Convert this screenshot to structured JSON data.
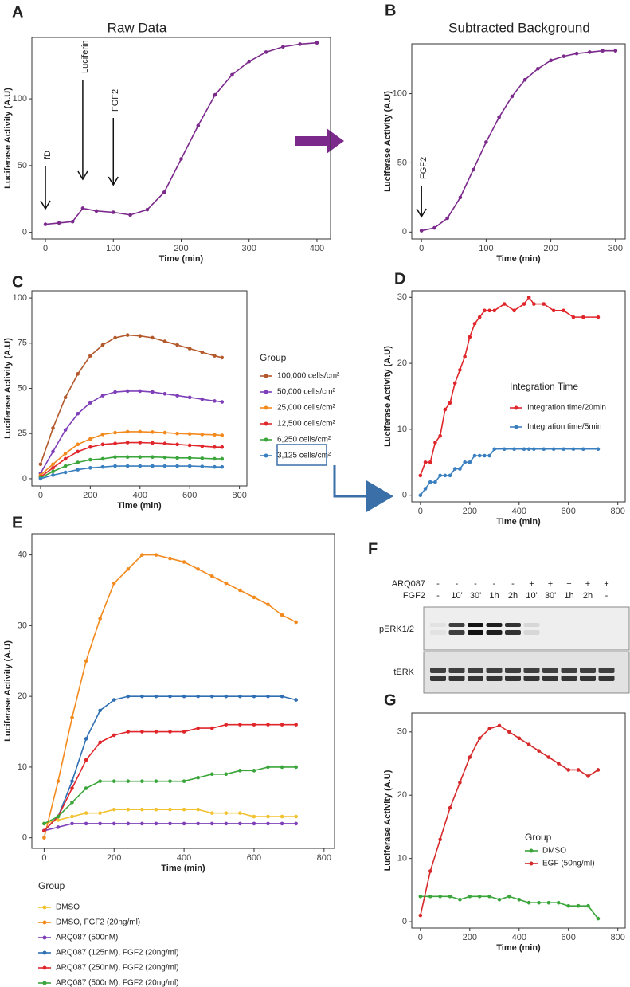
{
  "chart_data": [
    {
      "type": "line",
      "panel": "A",
      "title": "Raw Data",
      "x_label": "Time (min)",
      "y_label": "Luciferase Activity (A.U)",
      "annotations": [
        "fD",
        "Luciferin",
        "FGF2"
      ],
      "x": [
        0,
        20,
        40,
        55,
        75,
        100,
        125,
        150,
        175,
        200,
        225,
        250,
        275,
        300,
        325,
        350,
        375,
        400
      ],
      "xlim": [
        -20,
        420
      ],
      "xticks": [
        0,
        100,
        200,
        300,
        400
      ],
      "ylim": [
        -5,
        146
      ],
      "yticks": [
        0,
        50,
        100
      ],
      "series": [
        {
          "name": null,
          "color": "#7b2a8c",
          "values": [
            6,
            7,
            8,
            18,
            16,
            15,
            13,
            17,
            30,
            55,
            80,
            103,
            118,
            128,
            135,
            139,
            141,
            142
          ]
        }
      ]
    },
    {
      "type": "line",
      "panel": "B",
      "title": "Subtracted Background",
      "x_label": "Time (min)",
      "y_label": "Luciferase Activity (A.U)",
      "annotations": [
        "FGF2"
      ],
      "x": [
        0,
        20,
        40,
        60,
        80,
        100,
        120,
        140,
        160,
        180,
        200,
        220,
        240,
        260,
        280,
        300
      ],
      "xlim": [
        -15,
        315
      ],
      "xticks": [
        0,
        100,
        200,
        300
      ],
      "ylim": [
        -5,
        136
      ],
      "yticks": [
        0,
        50,
        100
      ],
      "series": [
        {
          "name": null,
          "color": "#7b2a8c",
          "values": [
            1,
            3,
            10,
            25,
            45,
            65,
            83,
            98,
            110,
            118,
            124,
            127,
            129,
            130,
            131,
            131
          ]
        }
      ]
    },
    {
      "type": "line",
      "panel": "C",
      "x_label": "Time (min)",
      "y_label": "Luciferase Activity (A.U)",
      "legend_title": "Group",
      "x": [
        0,
        50,
        100,
        150,
        200,
        250,
        300,
        350,
        400,
        450,
        500,
        550,
        600,
        650,
        700,
        730
      ],
      "xlim": [
        -35,
        830
      ],
      "xticks": [
        0,
        200,
        400,
        600,
        800
      ],
      "ylim": [
        -4,
        104
      ],
      "yticks": [
        0,
        25,
        50,
        75,
        100
      ],
      "series": [
        {
          "name": "100,000 cells/cm²",
          "color": "#b3592b",
          "values": [
            8,
            28,
            45,
            58,
            68,
            74,
            78,
            79.5,
            79,
            78,
            76,
            74,
            72,
            70,
            68,
            67
          ]
        },
        {
          "name": "50,000 cells/cm²",
          "color": "#7e3fb9",
          "values": [
            3,
            15,
            27,
            36,
            42,
            46,
            48,
            48.5,
            48.5,
            48,
            47,
            46,
            45,
            44,
            43,
            42.5
          ]
        },
        {
          "name": "25,000 cells/cm²",
          "color": "#f28a1e",
          "values": [
            2,
            8,
            14,
            19,
            22,
            24.5,
            25.5,
            26,
            26,
            25.8,
            25.5,
            25,
            24.8,
            24.5,
            24.3,
            24
          ]
        },
        {
          "name": "12,500 cells/cm²",
          "color": "#e0262b",
          "values": [
            1,
            6,
            11,
            15,
            17.5,
            19,
            19.5,
            20,
            20,
            19.8,
            19.5,
            19,
            18.5,
            18,
            17.5,
            17.5
          ]
        },
        {
          "name": "6,250 cells/cm²",
          "color": "#3aa53a",
          "values": [
            0.5,
            4,
            7,
            9,
            10.5,
            11,
            12,
            12,
            12,
            12,
            11.8,
            11.5,
            11.5,
            11.3,
            11,
            11
          ]
        },
        {
          "name": "3,125 cells/cm²",
          "color": "#3a7fbf",
          "values": [
            0,
            2,
            3.5,
            5,
            6,
            6.5,
            7,
            7,
            7,
            7,
            7,
            7,
            7,
            6.8,
            6.5,
            6.5
          ]
        }
      ]
    },
    {
      "type": "line",
      "panel": "D",
      "x_label": "Time (min)",
      "y_label": "Luciferase Activity (A.U)",
      "legend_title": "Integration Time",
      "x": [
        0,
        20,
        40,
        60,
        80,
        100,
        120,
        140,
        160,
        180,
        200,
        220,
        240,
        260,
        280,
        300,
        340,
        380,
        420,
        440,
        460,
        500,
        540,
        580,
        620,
        660,
        720
      ],
      "xlim": [
        -35,
        830
      ],
      "xticks": [
        0,
        200,
        400,
        600,
        800
      ],
      "ylim": [
        -1,
        31
      ],
      "yticks": [
        0,
        10,
        20,
        30
      ],
      "series": [
        {
          "name": "Integration time/20min",
          "color": "#e0262b",
          "values": [
            3,
            5,
            5,
            8,
            9,
            13,
            14,
            17,
            19,
            21,
            24,
            26,
            27,
            28,
            28,
            28,
            29,
            28,
            29,
            30,
            29,
            29,
            28,
            28,
            27,
            27,
            27
          ]
        },
        {
          "name": "Integration time/5min",
          "color": "#3a7fbf",
          "values": [
            0,
            1,
            2,
            2,
            3,
            3,
            3,
            4,
            4,
            5,
            5,
            6,
            6,
            6,
            6,
            7,
            7,
            7,
            7,
            7,
            7,
            7,
            7,
            7,
            7,
            7,
            7
          ]
        }
      ]
    },
    {
      "type": "line",
      "panel": "E",
      "x_label": "Time (min)",
      "y_label": "Luciferase Activity (A.U)",
      "legend_title": "Group",
      "x": [
        0,
        40,
        80,
        120,
        160,
        200,
        240,
        280,
        320,
        360,
        400,
        440,
        480,
        520,
        560,
        600,
        640,
        680,
        720
      ],
      "xlim": [
        -35,
        830
      ],
      "xticks": [
        0,
        200,
        400,
        600,
        800
      ],
      "ylim": [
        -1.5,
        43
      ],
      "yticks": [
        0,
        10,
        20,
        30,
        40
      ],
      "series": [
        {
          "name": "DMSO",
          "color": "#f2c230",
          "values": [
            2,
            2.5,
            3,
            3.5,
            3.5,
            4,
            4,
            4,
            4,
            4,
            4,
            4,
            3.5,
            3.5,
            3.5,
            3,
            3,
            3,
            3
          ]
        },
        {
          "name": "DMSO, FGF2 (20ng/ml)",
          "color": "#f28a1e",
          "values": [
            0,
            8,
            17,
            25,
            31,
            36,
            38,
            40,
            40,
            39.5,
            39,
            38,
            37,
            36,
            35,
            34,
            33,
            31.5,
            30.5
          ]
        },
        {
          "name": "ARQ087 (500nM)",
          "color": "#7e3fb9",
          "values": [
            1,
            1.5,
            2,
            2,
            2,
            2,
            2,
            2,
            2,
            2,
            2,
            2,
            2,
            2,
            2,
            2,
            2,
            2,
            2
          ]
        },
        {
          "name": "ARQ087 (125nM), FGF2 (20ng/ml)",
          "color": "#2f6fb3",
          "values": [
            1,
            3,
            8,
            14,
            18,
            19.5,
            20,
            20,
            20,
            20,
            20,
            20,
            20,
            20,
            20,
            20,
            20,
            20,
            19.5
          ]
        },
        {
          "name": "ARQ087 (250nM), FGF2 (20ng/ml)",
          "color": "#e0262b",
          "values": [
            1,
            3,
            7,
            11,
            13.5,
            14.5,
            15,
            15,
            15,
            15,
            15,
            15.5,
            15.5,
            16,
            16,
            16,
            16,
            16,
            16
          ]
        },
        {
          "name": "ARQ087 (500nM), FGF2 (20ng/ml)",
          "color": "#3aa53a",
          "values": [
            2,
            3,
            5,
            7,
            8,
            8,
            8,
            8,
            8,
            8,
            8,
            8.5,
            9,
            9,
            9.5,
            9.5,
            10,
            10,
            10
          ]
        }
      ]
    },
    {
      "type": "line",
      "panel": "G",
      "x_label": "Time (min)",
      "y_label": "Luciferase Activity (A.U)",
      "legend_title": "Group",
      "x": [
        0,
        40,
        80,
        120,
        160,
        200,
        240,
        280,
        320,
        360,
        400,
        440,
        480,
        520,
        560,
        600,
        640,
        680,
        720
      ],
      "xlim": [
        -35,
        830
      ],
      "xticks": [
        0,
        200,
        400,
        600,
        800
      ],
      "ylim": [
        -1,
        33
      ],
      "yticks": [
        0,
        10,
        20,
        30
      ],
      "series": [
        {
          "name": "DMSO",
          "color": "#3aa53a",
          "values": [
            4,
            4,
            4,
            4,
            3.5,
            4,
            4,
            4,
            3.5,
            4,
            3.5,
            3,
            3,
            3,
            3,
            2.5,
            2.5,
            2.5,
            0.5
          ]
        },
        {
          "name": "EGF (50ng/ml)",
          "color": "#d62a2a",
          "values": [
            1,
            8,
            13,
            18,
            22,
            26,
            29,
            30.5,
            31,
            30,
            29,
            28,
            27,
            26,
            25,
            24,
            24,
            23,
            24
          ]
        }
      ]
    }
  ],
  "blot": {
    "panel": "F",
    "row_labels": [
      "ARQ087",
      "FGF2"
    ],
    "arq087": [
      "-",
      "-",
      "-",
      "-",
      "-",
      "+",
      "+",
      "+",
      "+",
      "+"
    ],
    "fgf2": [
      "-",
      "10'",
      "30'",
      "1h",
      "2h",
      "10'",
      "30'",
      "1h",
      "2h",
      "-"
    ],
    "bands": [
      "pERK1/2",
      "tERK"
    ]
  }
}
